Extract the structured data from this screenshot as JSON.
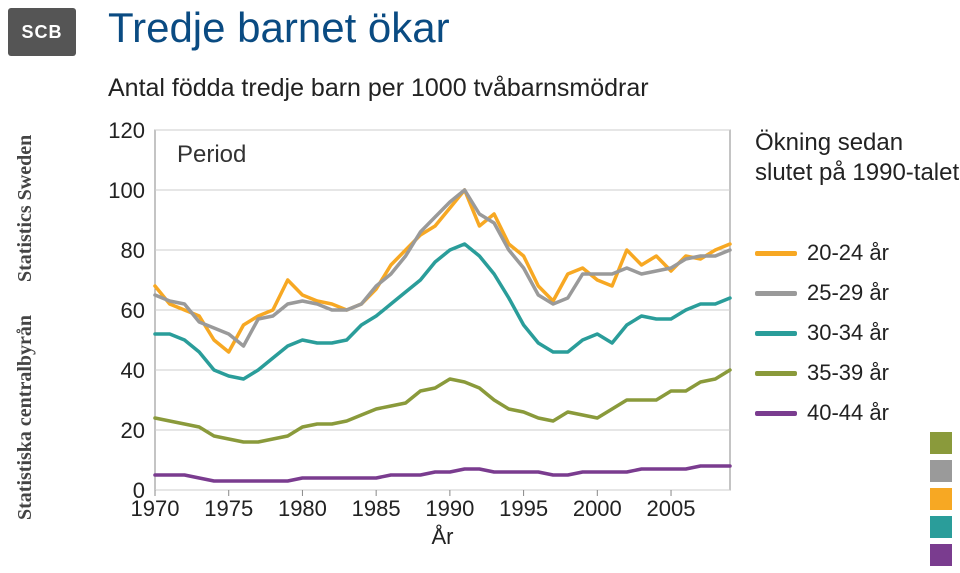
{
  "logo_text": "SCB",
  "sidebar": {
    "org": "Statistiska centralbyrån",
    "en": "Statistics Sweden"
  },
  "title": "Tredje barnet ökar",
  "subtitle": "Antal födda tredje barn per 1000 tvåbarnsmödrar",
  "period_label": "Period",
  "side_note_line1": "Ökning sedan",
  "side_note_line2": "slutet på 1990-talet",
  "chart": {
    "type": "line",
    "xlim": [
      1970,
      2009
    ],
    "ylim": [
      0,
      120
    ],
    "ytick_step": 20,
    "xtick_step": 5,
    "xlabel": "År",
    "background_color": "#ffffff",
    "grid_color": "#cccccc",
    "axis_color": "#888888",
    "line_width": 3.5,
    "title_fontsize": 42,
    "label_fontsize": 22,
    "tick_fontsize": 22,
    "series": [
      {
        "name": "20-24 år",
        "color": "#f7a823",
        "data": [
          [
            1970,
            68
          ],
          [
            1971,
            62
          ],
          [
            1972,
            60
          ],
          [
            1973,
            58
          ],
          [
            1974,
            50
          ],
          [
            1975,
            46
          ],
          [
            1976,
            55
          ],
          [
            1977,
            58
          ],
          [
            1978,
            60
          ],
          [
            1979,
            70
          ],
          [
            1980,
            65
          ],
          [
            1981,
            63
          ],
          [
            1982,
            62
          ],
          [
            1983,
            60
          ],
          [
            1984,
            62
          ],
          [
            1985,
            67
          ],
          [
            1986,
            75
          ],
          [
            1987,
            80
          ],
          [
            1988,
            85
          ],
          [
            1989,
            88
          ],
          [
            1990,
            94
          ],
          [
            1991,
            100
          ],
          [
            1992,
            88
          ],
          [
            1993,
            92
          ],
          [
            1994,
            82
          ],
          [
            1995,
            78
          ],
          [
            1996,
            68
          ],
          [
            1997,
            63
          ],
          [
            1998,
            72
          ],
          [
            1999,
            74
          ],
          [
            2000,
            70
          ],
          [
            2001,
            68
          ],
          [
            2002,
            80
          ],
          [
            2003,
            75
          ],
          [
            2004,
            78
          ],
          [
            2005,
            73
          ],
          [
            2006,
            78
          ],
          [
            2007,
            77
          ],
          [
            2008,
            80
          ],
          [
            2009,
            82
          ]
        ]
      },
      {
        "name": "25-29 år",
        "color": "#9a9a9a",
        "data": [
          [
            1970,
            65
          ],
          [
            1971,
            63
          ],
          [
            1972,
            62
          ],
          [
            1973,
            56
          ],
          [
            1974,
            54
          ],
          [
            1975,
            52
          ],
          [
            1976,
            48
          ],
          [
            1977,
            57
          ],
          [
            1978,
            58
          ],
          [
            1979,
            62
          ],
          [
            1980,
            63
          ],
          [
            1981,
            62
          ],
          [
            1982,
            60
          ],
          [
            1983,
            60
          ],
          [
            1984,
            62
          ],
          [
            1985,
            68
          ],
          [
            1986,
            72
          ],
          [
            1987,
            78
          ],
          [
            1988,
            86
          ],
          [
            1989,
            91
          ],
          [
            1990,
            96
          ],
          [
            1991,
            100
          ],
          [
            1992,
            92
          ],
          [
            1993,
            89
          ],
          [
            1994,
            80
          ],
          [
            1995,
            74
          ],
          [
            1996,
            65
          ],
          [
            1997,
            62
          ],
          [
            1998,
            64
          ],
          [
            1999,
            72
          ],
          [
            2000,
            72
          ],
          [
            2001,
            72
          ],
          [
            2002,
            74
          ],
          [
            2003,
            72
          ],
          [
            2004,
            73
          ],
          [
            2005,
            74
          ],
          [
            2006,
            77
          ],
          [
            2007,
            78
          ],
          [
            2008,
            78
          ],
          [
            2009,
            80
          ]
        ]
      },
      {
        "name": "30-34 år",
        "color": "#2a9d9a",
        "data": [
          [
            1970,
            52
          ],
          [
            1971,
            52
          ],
          [
            1972,
            50
          ],
          [
            1973,
            46
          ],
          [
            1974,
            40
          ],
          [
            1975,
            38
          ],
          [
            1976,
            37
          ],
          [
            1977,
            40
          ],
          [
            1978,
            44
          ],
          [
            1979,
            48
          ],
          [
            1980,
            50
          ],
          [
            1981,
            49
          ],
          [
            1982,
            49
          ],
          [
            1983,
            50
          ],
          [
            1984,
            55
          ],
          [
            1985,
            58
          ],
          [
            1986,
            62
          ],
          [
            1987,
            66
          ],
          [
            1988,
            70
          ],
          [
            1989,
            76
          ],
          [
            1990,
            80
          ],
          [
            1991,
            82
          ],
          [
            1992,
            78
          ],
          [
            1993,
            72
          ],
          [
            1994,
            64
          ],
          [
            1995,
            55
          ],
          [
            1996,
            49
          ],
          [
            1997,
            46
          ],
          [
            1998,
            46
          ],
          [
            1999,
            50
          ],
          [
            2000,
            52
          ],
          [
            2001,
            49
          ],
          [
            2002,
            55
          ],
          [
            2003,
            58
          ],
          [
            2004,
            57
          ],
          [
            2005,
            57
          ],
          [
            2006,
            60
          ],
          [
            2007,
            62
          ],
          [
            2008,
            62
          ],
          [
            2009,
            64
          ]
        ]
      },
      {
        "name": "35-39 år",
        "color": "#8a9a3b",
        "data": [
          [
            1970,
            24
          ],
          [
            1971,
            23
          ],
          [
            1972,
            22
          ],
          [
            1973,
            21
          ],
          [
            1974,
            18
          ],
          [
            1975,
            17
          ],
          [
            1976,
            16
          ],
          [
            1977,
            16
          ],
          [
            1978,
            17
          ],
          [
            1979,
            18
          ],
          [
            1980,
            21
          ],
          [
            1981,
            22
          ],
          [
            1982,
            22
          ],
          [
            1983,
            23
          ],
          [
            1984,
            25
          ],
          [
            1985,
            27
          ],
          [
            1986,
            28
          ],
          [
            1987,
            29
          ],
          [
            1988,
            33
          ],
          [
            1989,
            34
          ],
          [
            1990,
            37
          ],
          [
            1991,
            36
          ],
          [
            1992,
            34
          ],
          [
            1993,
            30
          ],
          [
            1994,
            27
          ],
          [
            1995,
            26
          ],
          [
            1996,
            24
          ],
          [
            1997,
            23
          ],
          [
            1998,
            26
          ],
          [
            1999,
            25
          ],
          [
            2000,
            24
          ],
          [
            2001,
            27
          ],
          [
            2002,
            30
          ],
          [
            2003,
            30
          ],
          [
            2004,
            30
          ],
          [
            2005,
            33
          ],
          [
            2006,
            33
          ],
          [
            2007,
            36
          ],
          [
            2008,
            37
          ],
          [
            2009,
            40
          ]
        ]
      },
      {
        "name": "40-44 år",
        "color": "#7a3c8f",
        "data": [
          [
            1970,
            5
          ],
          [
            1971,
            5
          ],
          [
            1972,
            5
          ],
          [
            1973,
            4
          ],
          [
            1974,
            3
          ],
          [
            1975,
            3
          ],
          [
            1976,
            3
          ],
          [
            1977,
            3
          ],
          [
            1978,
            3
          ],
          [
            1979,
            3
          ],
          [
            1980,
            4
          ],
          [
            1981,
            4
          ],
          [
            1982,
            4
          ],
          [
            1983,
            4
          ],
          [
            1984,
            4
          ],
          [
            1985,
            4
          ],
          [
            1986,
            5
          ],
          [
            1987,
            5
          ],
          [
            1988,
            5
          ],
          [
            1989,
            6
          ],
          [
            1990,
            6
          ],
          [
            1991,
            7
          ],
          [
            1992,
            7
          ],
          [
            1993,
            6
          ],
          [
            1994,
            6
          ],
          [
            1995,
            6
          ],
          [
            1996,
            6
          ],
          [
            1997,
            5
          ],
          [
            1998,
            5
          ],
          [
            1999,
            6
          ],
          [
            2000,
            6
          ],
          [
            2001,
            6
          ],
          [
            2002,
            6
          ],
          [
            2003,
            7
          ],
          [
            2004,
            7
          ],
          [
            2005,
            7
          ],
          [
            2006,
            7
          ],
          [
            2007,
            8
          ],
          [
            2008,
            8
          ],
          [
            2009,
            8
          ]
        ]
      }
    ]
  },
  "legend": [
    {
      "label": "20-24 år",
      "color": "#f7a823"
    },
    {
      "label": "25-29 år",
      "color": "#9a9a9a"
    },
    {
      "label": "30-34 år",
      "color": "#2a9d9a"
    },
    {
      "label": "35-39 år",
      "color": "#8a9a3b"
    },
    {
      "label": "40-44 år",
      "color": "#7a3c8f"
    }
  ],
  "decor_squares": [
    "#8a9a3b",
    "#9a9a9a",
    "#f7a823",
    "#2a9d9a",
    "#7a3c8f"
  ]
}
